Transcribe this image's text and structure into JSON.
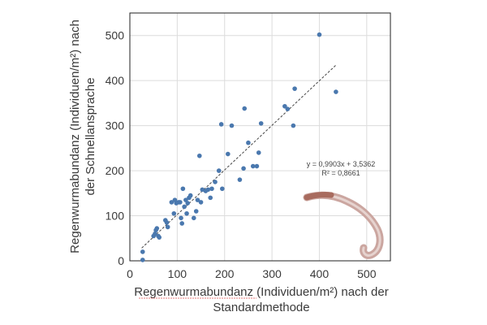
{
  "chart_data": {
    "type": "scatter",
    "title": "",
    "xlabel_line1": "Regenwurmabundanz (Individuen/m²) nach der",
    "xlabel_line2": "Standardmethode",
    "ylabel_line1": "Regenwurmabundanz (Individuen/m²) nach",
    "ylabel_line2": "der Schnellansprache",
    "xlim": [
      0,
      550
    ],
    "ylim": [
      0,
      550
    ],
    "xticks": [
      0,
      100,
      200,
      300,
      400,
      500
    ],
    "yticks": [
      0,
      100,
      200,
      300,
      400,
      500
    ],
    "grid": true,
    "trendline": {
      "x0": 25,
      "x1": 435,
      "slope": 0.9903,
      "intercept": 3.5362,
      "style": "dashed"
    },
    "equation": "y = 0,9903x + 3,5362",
    "r_squared": "R² = 0,8661",
    "marker_color": "#4a78ae",
    "line_color": "#444444",
    "points": [
      {
        "x": 27,
        "y": 2
      },
      {
        "x": 27,
        "y": 20
      },
      {
        "x": 50,
        "y": 55
      },
      {
        "x": 53,
        "y": 60
      },
      {
        "x": 55,
        "y": 68
      },
      {
        "x": 57,
        "y": 72
      },
      {
        "x": 60,
        "y": 55
      },
      {
        "x": 62,
        "y": 52
      },
      {
        "x": 75,
        "y": 90
      },
      {
        "x": 78,
        "y": 85
      },
      {
        "x": 80,
        "y": 75
      },
      {
        "x": 88,
        "y": 130
      },
      {
        "x": 93,
        "y": 105
      },
      {
        "x": 95,
        "y": 135
      },
      {
        "x": 98,
        "y": 128
      },
      {
        "x": 103,
        "y": 130
      },
      {
        "x": 106,
        "y": 130
      },
      {
        "x": 108,
        "y": 95
      },
      {
        "x": 110,
        "y": 83
      },
      {
        "x": 112,
        "y": 160
      },
      {
        "x": 115,
        "y": 120
      },
      {
        "x": 118,
        "y": 135
      },
      {
        "x": 120,
        "y": 105
      },
      {
        "x": 122,
        "y": 128
      },
      {
        "x": 125,
        "y": 140
      },
      {
        "x": 128,
        "y": 145
      },
      {
        "x": 135,
        "y": 95
      },
      {
        "x": 140,
        "y": 110
      },
      {
        "x": 143,
        "y": 135
      },
      {
        "x": 147,
        "y": 233
      },
      {
        "x": 150,
        "y": 130
      },
      {
        "x": 153,
        "y": 158
      },
      {
        "x": 160,
        "y": 155
      },
      {
        "x": 165,
        "y": 158
      },
      {
        "x": 170,
        "y": 140
      },
      {
        "x": 173,
        "y": 160
      },
      {
        "x": 180,
        "y": 175
      },
      {
        "x": 188,
        "y": 200
      },
      {
        "x": 193,
        "y": 303
      },
      {
        "x": 195,
        "y": 160
      },
      {
        "x": 207,
        "y": 237
      },
      {
        "x": 215,
        "y": 300
      },
      {
        "x": 232,
        "y": 180
      },
      {
        "x": 240,
        "y": 205
      },
      {
        "x": 242,
        "y": 338
      },
      {
        "x": 250,
        "y": 262
      },
      {
        "x": 260,
        "y": 210
      },
      {
        "x": 268,
        "y": 210
      },
      {
        "x": 272,
        "y": 240
      },
      {
        "x": 277,
        "y": 305
      },
      {
        "x": 327,
        "y": 343
      },
      {
        "x": 333,
        "y": 337
      },
      {
        "x": 345,
        "y": 300
      },
      {
        "x": 348,
        "y": 382
      },
      {
        "x": 400,
        "y": 502
      },
      {
        "x": 435,
        "y": 375
      }
    ]
  }
}
